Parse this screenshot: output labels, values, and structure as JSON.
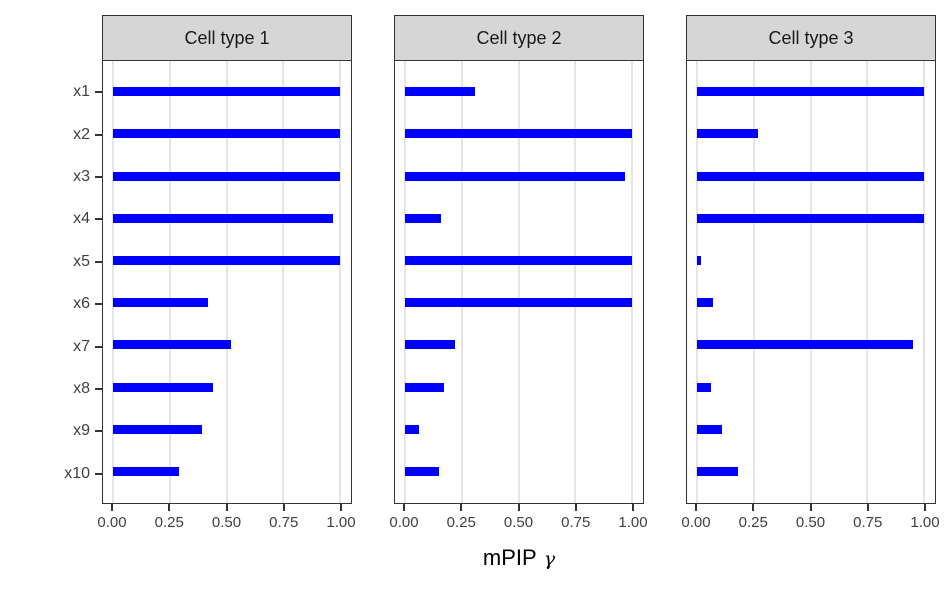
{
  "chart_data": {
    "type": "bar",
    "orientation": "horizontal",
    "xlabel": "mPIP γ",
    "xlabel_text": "mPIP",
    "xlabel_symbol": "γ",
    "categories": [
      "x1",
      "x2",
      "x3",
      "x4",
      "x5",
      "x6",
      "x7",
      "x8",
      "x9",
      "x10"
    ],
    "xticks": [
      0,
      0.25,
      0.5,
      0.75,
      1.0
    ],
    "xtick_labels": [
      "0.00",
      "0.25",
      "0.50",
      "0.75",
      "1.00"
    ],
    "xlim": [
      0,
      1
    ],
    "grid": "vertical-major-only",
    "legend": "none",
    "facets": [
      {
        "title": "Cell type 1",
        "values": [
          1.0,
          1.0,
          1.0,
          0.97,
          1.0,
          0.42,
          0.52,
          0.44,
          0.39,
          0.29
        ]
      },
      {
        "title": "Cell type 2",
        "values": [
          0.31,
          1.0,
          0.97,
          0.16,
          1.0,
          1.0,
          0.22,
          0.17,
          0.06,
          0.15
        ]
      },
      {
        "title": "Cell type 3",
        "values": [
          1.0,
          0.27,
          1.0,
          1.0,
          0.02,
          0.07,
          0.95,
          0.06,
          0.11,
          0.18
        ]
      }
    ],
    "colors": {
      "bar": "#0000FF",
      "strip_bg": "#D6D6D6",
      "panel_border": "#333333",
      "grid": "#E5E5E5",
      "axis_text": "#404040",
      "axis_title": "#000000"
    }
  }
}
